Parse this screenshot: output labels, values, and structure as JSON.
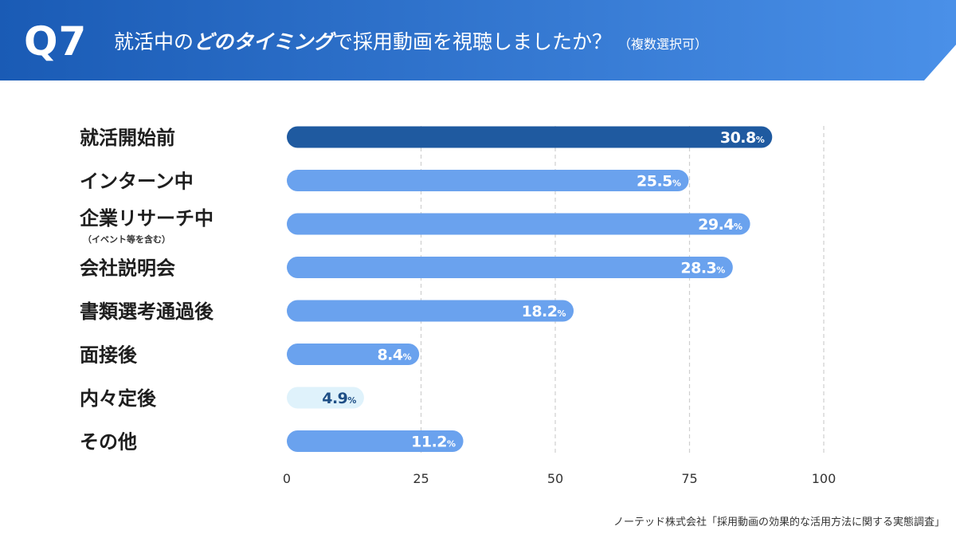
{
  "header": {
    "question_no": "Q7",
    "title_a": "就活中の",
    "title_em": "どのタイミング",
    "title_b": "で採用動画を視聴しましたか？",
    "title_note": "（複数選択可）"
  },
  "colors": {
    "header_start": "#1a5bb5",
    "header_end": "#4a90e8",
    "bar_highlight": "#1f5aa0",
    "bar_default": "#6aa2ee",
    "bar_light": "#dff2fb",
    "label_dark_on_light": "#1f4f86"
  },
  "chart_data": {
    "type": "bar",
    "orientation": "horizontal",
    "categories": [
      "就活開始前",
      "インターン中",
      "企業リサーチ中",
      "会社説明会",
      "書類選考通過後",
      "面接後",
      "内々定後",
      "その他"
    ],
    "category_sublabels": [
      "",
      "",
      "（イベント等を含む）",
      "",
      "",
      "",
      "",
      ""
    ],
    "values": [
      30.8,
      25.5,
      29.4,
      28.3,
      18.2,
      8.4,
      4.9,
      11.2
    ],
    "value_labels": [
      "30.8",
      "25.5",
      "29.4",
      "28.3",
      "18.2",
      "8.4",
      "4.9",
      "11.2"
    ],
    "unit": "%",
    "xticks": [
      "0",
      "25",
      "50",
      "75",
      "100"
    ],
    "xtick_values": [
      0,
      25,
      50,
      75,
      100
    ],
    "grid": true,
    "bar_styles": [
      "highlight",
      "default",
      "default",
      "default",
      "default",
      "default",
      "light",
      "default"
    ]
  },
  "source": "ノーテッド株式会社「採用動画の効果的な活用方法に関する実態調査」"
}
